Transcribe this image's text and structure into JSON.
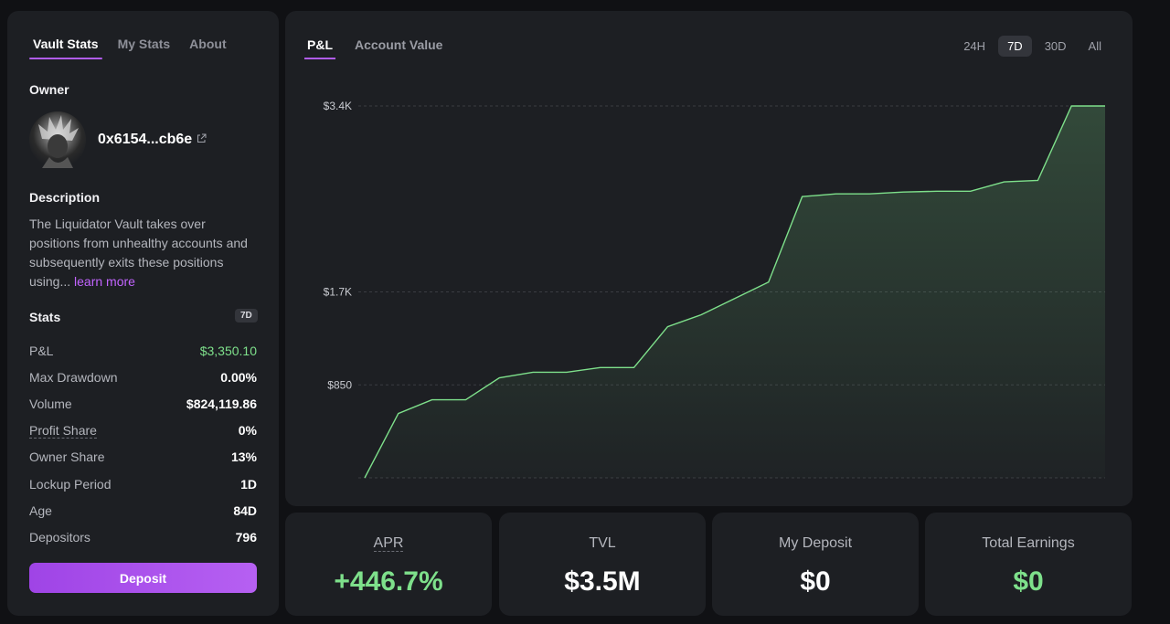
{
  "sidebar": {
    "tabs": [
      {
        "label": "Vault Stats",
        "active": true
      },
      {
        "label": "My Stats",
        "active": false
      },
      {
        "label": "About",
        "active": false
      }
    ],
    "owner_title": "Owner",
    "owner_address": "0x6154...cb6e",
    "description_title": "Description",
    "description_text": "The Liquidator Vault takes over positions from unhealthy accounts and subsequently exits these positions using...",
    "learn_more": "learn more",
    "stats_title": "Stats",
    "stats_badge": "7D",
    "stats": [
      {
        "label": "P&L",
        "value": "$3,350.10",
        "green": true
      },
      {
        "label": "Max Drawdown",
        "value": "0.00%"
      },
      {
        "label": "Volume",
        "value": "$824,119.86"
      },
      {
        "label": "Profit Share",
        "value": "0%",
        "underline": true
      },
      {
        "label": "Owner Share",
        "value": "13%"
      },
      {
        "label": "Lockup Period",
        "value": "1D"
      },
      {
        "label": "Age",
        "value": "84D"
      },
      {
        "label": "Depositors",
        "value": "796"
      }
    ],
    "deposit_label": "Deposit"
  },
  "chart_panel": {
    "tabs": [
      {
        "label": "P&L",
        "active": true
      },
      {
        "label": "Account Value",
        "active": false
      }
    ],
    "ranges": [
      {
        "label": "24H",
        "active": false
      },
      {
        "label": "7D",
        "active": true
      },
      {
        "label": "30D",
        "active": false
      },
      {
        "label": "All",
        "active": false
      }
    ]
  },
  "chart_data": {
    "type": "area",
    "title": "",
    "xlabel": "",
    "ylabel": "",
    "ytick_labels": [
      "$3.4K",
      "$1.7K",
      "$850"
    ],
    "ytick_values": [
      3400,
      1700,
      850
    ],
    "ylim": [
      0,
      3400
    ],
    "grid": true,
    "color": "#7ee08b",
    "values": [
      0,
      588,
      713,
      713,
      915,
      966,
      966,
      1008,
      1008,
      1382,
      1491,
      1641,
      1790,
      2571,
      2596,
      2596,
      2613,
      2621,
      2621,
      2706,
      2719,
      3400,
      3400
    ]
  },
  "cards": [
    {
      "label": "APR",
      "value": "+446.7%",
      "green": true,
      "underline": true
    },
    {
      "label": "TVL",
      "value": "$3.5M"
    },
    {
      "label": "My Deposit",
      "value": "$0"
    },
    {
      "label": "Total Earnings",
      "value": "$0",
      "green": true
    }
  ]
}
